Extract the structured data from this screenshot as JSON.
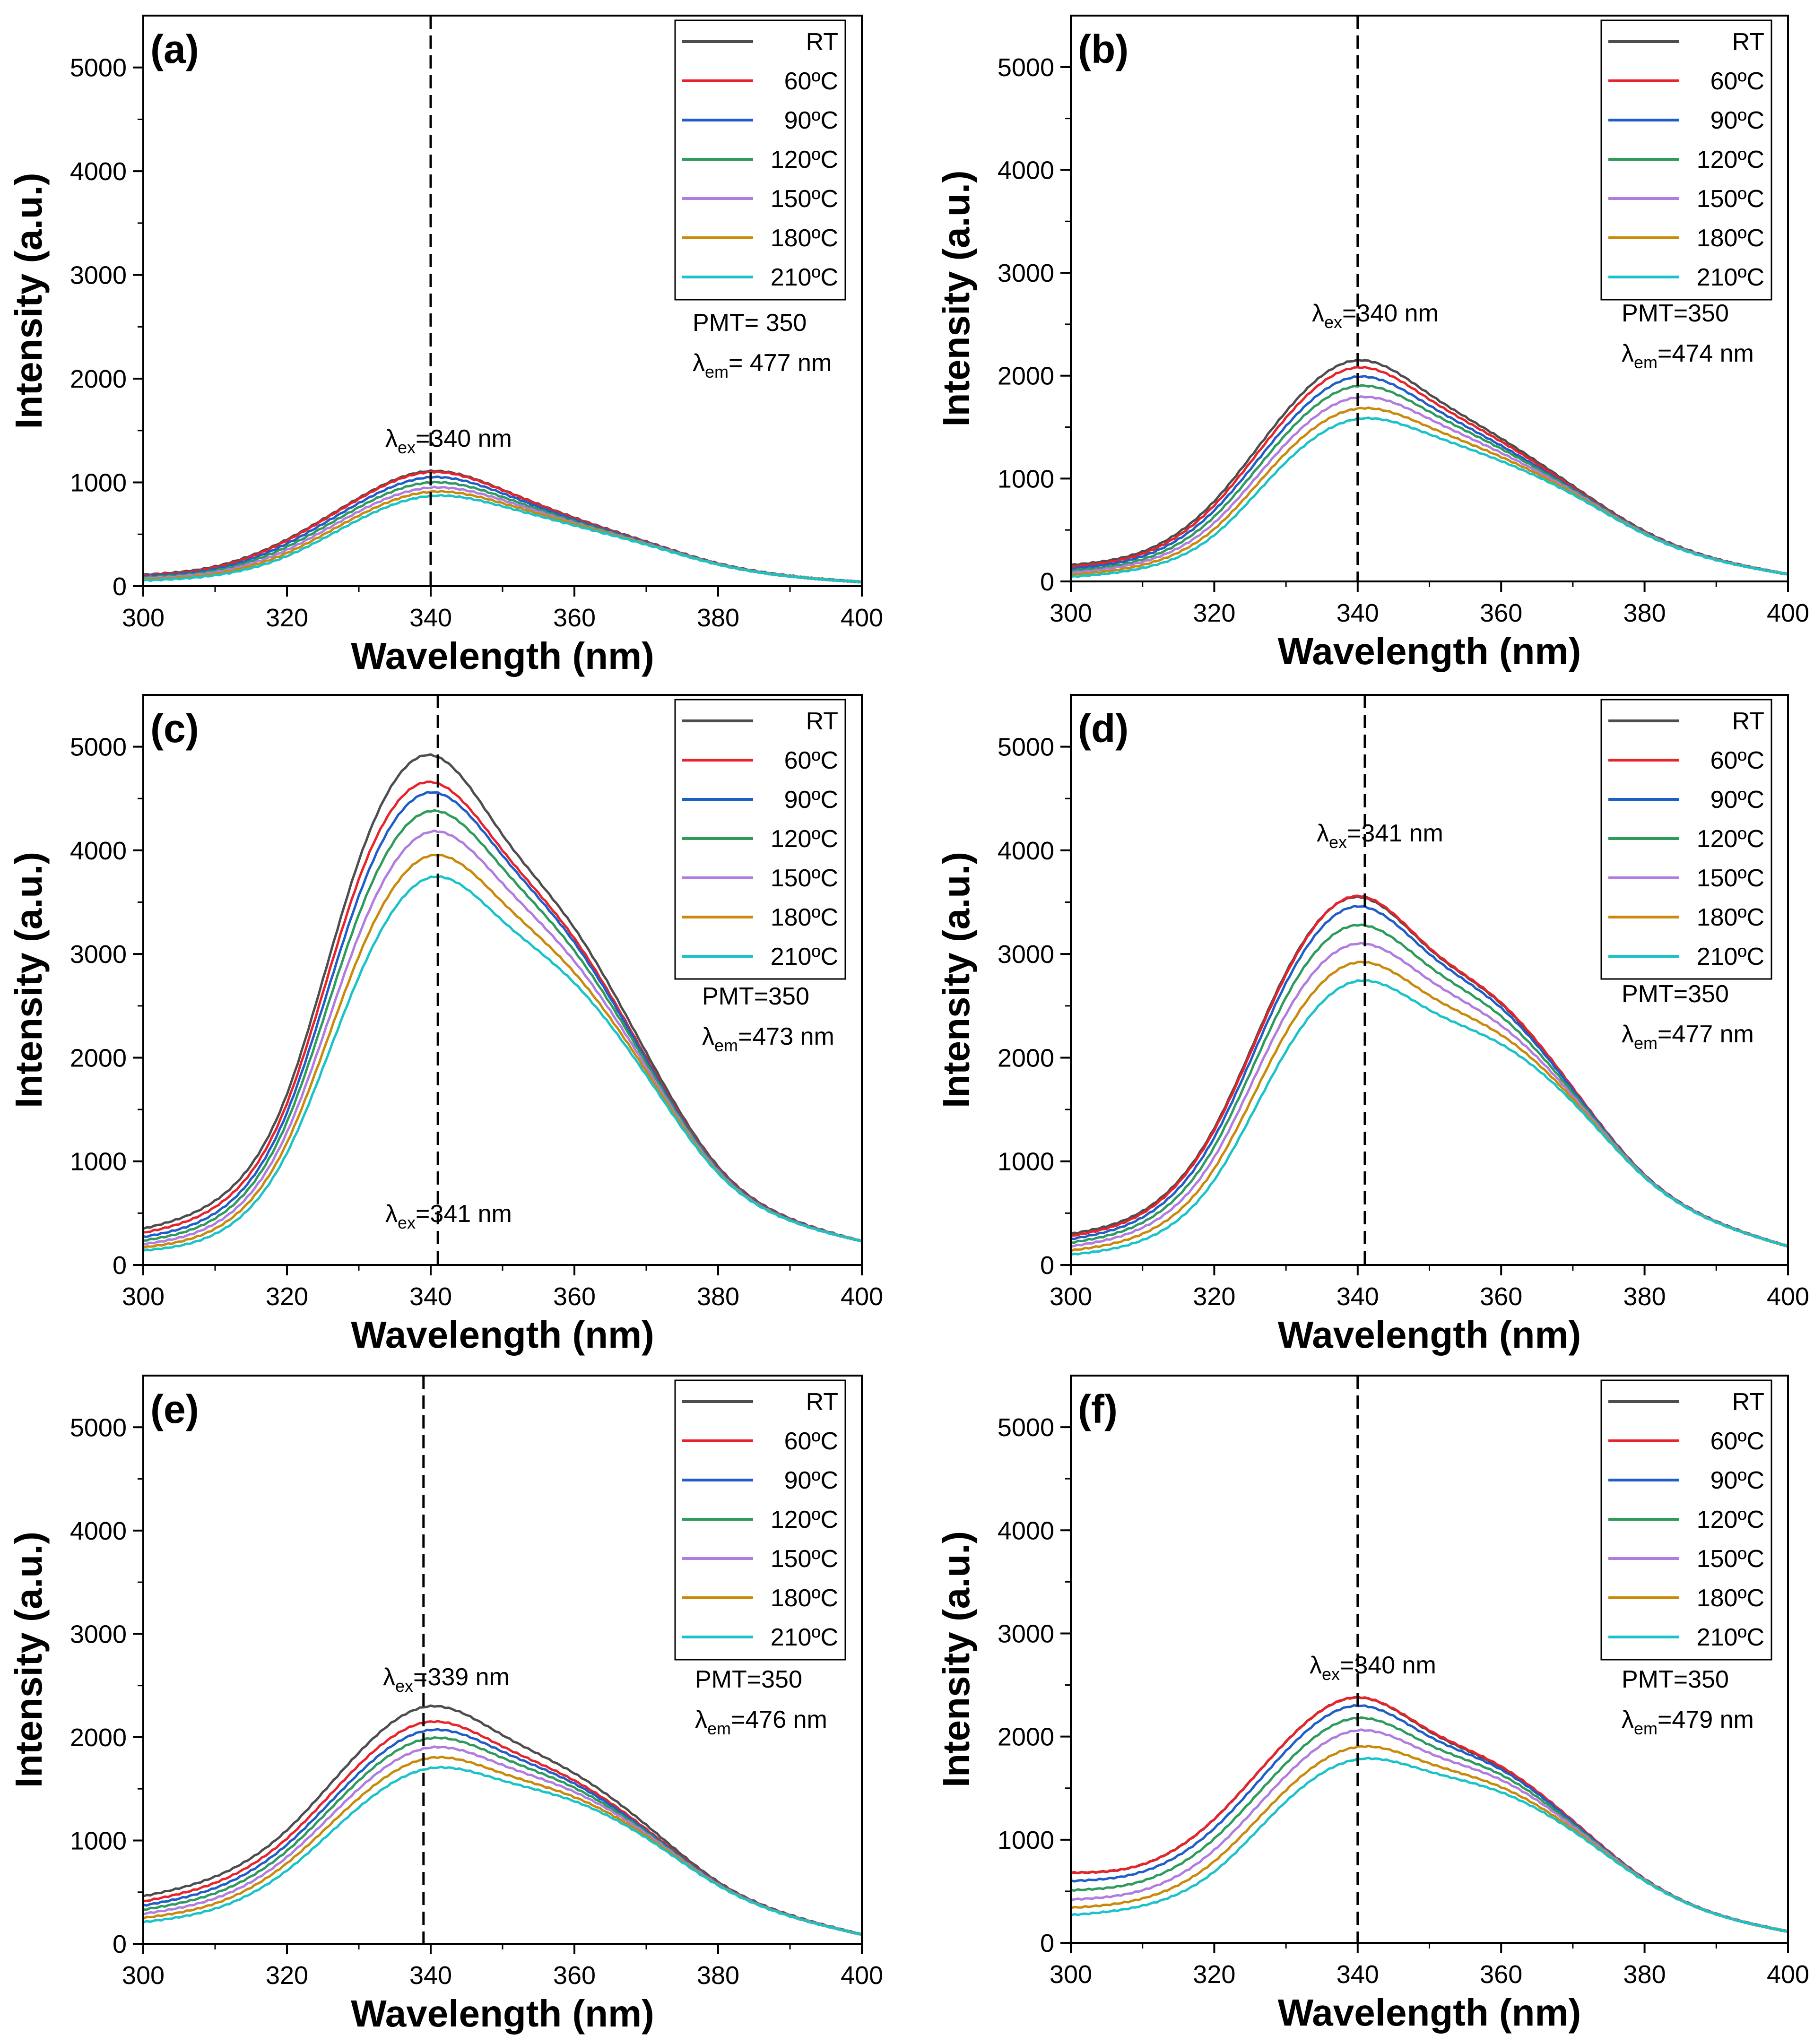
{
  "chart_data": [
    {
      "panel": "(a)",
      "type": "line",
      "xlabel": "Wavelength (nm)",
      "ylabel": "Intensity (a.u.)",
      "xlim": [
        300,
        400
      ],
      "ylim": [
        0,
        5500
      ],
      "xticks": [
        "300",
        "320",
        "340",
        "360",
        "380",
        "400"
      ],
      "yticks": [
        "0",
        "1000",
        "2000",
        "3000",
        "4000",
        "5000"
      ],
      "x": [
        300,
        310,
        320,
        330,
        340,
        350,
        360,
        370,
        380,
        390,
        400
      ],
      "series": [
        {
          "name": "RT",
          "color": "#4d4d4d",
          "values": [
            110,
            190,
            450,
            850,
            1110,
            930,
            660,
            430,
            220,
            100,
            40
          ]
        },
        {
          "name": "60ºC",
          "color": "#e8232a",
          "values": [
            105,
            180,
            440,
            840,
            1100,
            925,
            655,
            425,
            218,
            98,
            40
          ]
        },
        {
          "name": "90ºC",
          "color": "#1f5ec9",
          "values": [
            95,
            165,
            410,
            800,
            1050,
            895,
            640,
            420,
            216,
            97,
            40
          ]
        },
        {
          "name": "120ºC",
          "color": "#2e9a5c",
          "values": [
            85,
            150,
            380,
            760,
            1000,
            860,
            625,
            415,
            214,
            96,
            40
          ]
        },
        {
          "name": "150ºC",
          "color": "#b07ce0",
          "values": [
            75,
            135,
            350,
            720,
            950,
            830,
            610,
            410,
            212,
            95,
            40
          ]
        },
        {
          "name": "180ºC",
          "color": "#c98a0a",
          "values": [
            65,
            120,
            320,
            680,
            910,
            800,
            600,
            405,
            210,
            95,
            40
          ]
        },
        {
          "name": "210ºC",
          "color": "#19c3c8",
          "values": [
            55,
            105,
            290,
            640,
            870,
            770,
            585,
            400,
            208,
            94,
            40
          ]
        }
      ],
      "vline_x": 340,
      "annotations": {
        "pmt": "PMT= 350",
        "lambda_em_value": "= 477 nm",
        "lambda_ex_value": "=340 nm"
      }
    },
    {
      "panel": "(b)",
      "type": "line",
      "xlabel": "Wavelength (nm)",
      "ylabel": "Intensity (a.u.)",
      "xlim": [
        300,
        400
      ],
      "ylim": [
        0,
        5500
      ],
      "xticks": [
        "300",
        "320",
        "340",
        "360",
        "380",
        "400"
      ],
      "yticks": [
        "0",
        "1000",
        "2000",
        "3000",
        "4000",
        "5000"
      ],
      "x": [
        300,
        310,
        320,
        330,
        340,
        350,
        360,
        370,
        380,
        390,
        400
      ],
      "series": [
        {
          "name": "RT",
          "color": "#4d4d4d",
          "values": [
            160,
            290,
            780,
            1650,
            2150,
            1820,
            1390,
            930,
            490,
            220,
            70
          ]
        },
        {
          "name": "60ºC",
          "color": "#e8232a",
          "values": [
            145,
            270,
            740,
            1590,
            2080,
            1770,
            1360,
            915,
            485,
            218,
            70
          ]
        },
        {
          "name": "90ºC",
          "color": "#1f5ec9",
          "values": [
            125,
            245,
            690,
            1510,
            1990,
            1710,
            1320,
            900,
            480,
            216,
            70
          ]
        },
        {
          "name": "120ºC",
          "color": "#2e9a5c",
          "values": [
            105,
            215,
            630,
            1430,
            1900,
            1650,
            1290,
            890,
            475,
            214,
            70
          ]
        },
        {
          "name": "150ºC",
          "color": "#b07ce0",
          "values": [
            85,
            190,
            570,
            1340,
            1790,
            1580,
            1250,
            875,
            470,
            212,
            70
          ]
        },
        {
          "name": "180ºC",
          "color": "#c98a0a",
          "values": [
            65,
            160,
            510,
            1250,
            1680,
            1500,
            1210,
            860,
            465,
            210,
            70
          ]
        },
        {
          "name": "210ºC",
          "color": "#19c3c8",
          "values": [
            45,
            130,
            450,
            1160,
            1580,
            1430,
            1170,
            845,
            460,
            208,
            70
          ]
        }
      ],
      "vline_x": 340,
      "annotations": {
        "pmt": "PMT=350",
        "lambda_em_value": "=474 nm",
        "lambda_ex_value": "=340 nm"
      }
    },
    {
      "panel": "(c)",
      "type": "line",
      "xlabel": "Wavelength (nm)",
      "ylabel": "Intensity (a.u.)",
      "xlim": [
        300,
        400
      ],
      "ylim": [
        0,
        5500
      ],
      "xticks": [
        "300",
        "320",
        "340",
        "360",
        "380",
        "400"
      ],
      "yticks": [
        "0",
        "1000",
        "2000",
        "3000",
        "4000",
        "5000"
      ],
      "x": [
        300,
        310,
        320,
        330,
        340,
        350,
        360,
        370,
        380,
        390,
        400
      ],
      "series": [
        {
          "name": "RT",
          "color": "#4d4d4d",
          "values": [
            350,
            620,
            1650,
            3900,
            4920,
            4150,
            3250,
            2050,
            950,
            450,
            230
          ]
        },
        {
          "name": "60ºC",
          "color": "#e8232a",
          "values": [
            310,
            560,
            1560,
            3720,
            4660,
            4000,
            3150,
            2000,
            935,
            445,
            230
          ]
        },
        {
          "name": "90ºC",
          "color": "#1f5ec9",
          "values": [
            270,
            500,
            1470,
            3560,
            4560,
            3950,
            3110,
            1980,
            925,
            440,
            230
          ]
        },
        {
          "name": "120ºC",
          "color": "#2e9a5c",
          "values": [
            235,
            450,
            1380,
            3380,
            4380,
            3830,
            3030,
            1950,
            915,
            435,
            230
          ]
        },
        {
          "name": "150ºC",
          "color": "#b07ce0",
          "values": [
            200,
            400,
            1280,
            3180,
            4180,
            3680,
            2930,
            1910,
            905,
            432,
            230
          ]
        },
        {
          "name": "180ºC",
          "color": "#c98a0a",
          "values": [
            170,
            350,
            1180,
            2980,
            3950,
            3500,
            2820,
            1870,
            895,
            430,
            230
          ]
        },
        {
          "name": "210ºC",
          "color": "#19c3c8",
          "values": [
            140,
            300,
            1080,
            2780,
            3740,
            3320,
            2720,
            1830,
            885,
            428,
            230
          ]
        }
      ],
      "vline_x": 341,
      "annotations": {
        "pmt": "PMT=350",
        "lambda_em_value": "=473 nm",
        "lambda_ex_value": "=341 nm"
      }
    },
    {
      "panel": "(d)",
      "type": "line",
      "xlabel": "Wavelength (nm)",
      "ylabel": "Intensity (a.u.)",
      "xlim": [
        300,
        400
      ],
      "ylim": [
        0,
        5500
      ],
      "xticks": [
        "300",
        "320",
        "340",
        "360",
        "380",
        "400"
      ],
      "yticks": [
        "0",
        "1000",
        "2000",
        "3000",
        "4000",
        "5000"
      ],
      "x": [
        300,
        310,
        320,
        330,
        340,
        350,
        360,
        370,
        380,
        390,
        400
      ],
      "series": [
        {
          "name": "RT",
          "color": "#4d4d4d",
          "values": [
            300,
            520,
            1320,
            2820,
            3550,
            3050,
            2520,
            1700,
            870,
            420,
            180
          ]
        },
        {
          "name": "60ºC",
          "color": "#e8232a",
          "values": [
            280,
            500,
            1300,
            2800,
            3560,
            3060,
            2530,
            1710,
            872,
            421,
            180
          ]
        },
        {
          "name": "90ºC",
          "color": "#1f5ec9",
          "values": [
            250,
            460,
            1230,
            2720,
            3460,
            3000,
            2480,
            1690,
            868,
            419,
            180
          ]
        },
        {
          "name": "120ºC",
          "color": "#2e9a5c",
          "values": [
            215,
            410,
            1140,
            2580,
            3280,
            2880,
            2400,
            1660,
            862,
            417,
            180
          ]
        },
        {
          "name": "150ºC",
          "color": "#b07ce0",
          "values": [
            180,
            360,
            1040,
            2420,
            3100,
            2750,
            2310,
            1630,
            856,
            415,
            180
          ]
        },
        {
          "name": "180ºC",
          "color": "#c98a0a",
          "values": [
            140,
            300,
            930,
            2240,
            2920,
            2600,
            2220,
            1600,
            850,
            413,
            180
          ]
        },
        {
          "name": "210ºC",
          "color": "#19c3c8",
          "values": [
            100,
            240,
            820,
            2060,
            2740,
            2460,
            2130,
            1570,
            845,
            411,
            180
          ]
        }
      ],
      "vline_x": 341,
      "annotations": {
        "pmt": "PMT=350",
        "lambda_em_value": "=477 nm",
        "lambda_ex_value": "=341 nm"
      }
    },
    {
      "panel": "(e)",
      "type": "line",
      "xlabel": "Wavelength (nm)",
      "ylabel": "Intensity (a.u.)",
      "xlim": [
        300,
        400
      ],
      "ylim": [
        0,
        5500
      ],
      "xticks": [
        "300",
        "320",
        "340",
        "360",
        "380",
        "400"
      ],
      "yticks": [
        "0",
        "1000",
        "2000",
        "3000",
        "4000",
        "5000"
      ],
      "x": [
        300,
        310,
        320,
        330,
        340,
        350,
        360,
        370,
        380,
        390,
        400
      ],
      "series": [
        {
          "name": "RT",
          "color": "#4d4d4d",
          "values": [
            460,
            650,
            1100,
            1850,
            2300,
            2020,
            1650,
            1150,
            600,
            280,
            90
          ]
        },
        {
          "name": "60ºC",
          "color": "#e8232a",
          "values": [
            410,
            590,
            1020,
            1730,
            2150,
            1910,
            1580,
            1110,
            590,
            276,
            90
          ]
        },
        {
          "name": "90ºC",
          "color": "#1f5ec9",
          "values": [
            370,
            540,
            960,
            1650,
            2070,
            1860,
            1550,
            1095,
            585,
            274,
            90
          ]
        },
        {
          "name": "120ºC",
          "color": "#2e9a5c",
          "values": [
            330,
            490,
            900,
            1580,
            1990,
            1800,
            1510,
            1080,
            580,
            272,
            90
          ]
        },
        {
          "name": "150ºC",
          "color": "#b07ce0",
          "values": [
            290,
            440,
            840,
            1500,
            1900,
            1730,
            1470,
            1065,
            575,
            270,
            90
          ]
        },
        {
          "name": "180ºC",
          "color": "#c98a0a",
          "values": [
            250,
            390,
            780,
            1410,
            1800,
            1650,
            1420,
            1045,
            570,
            268,
            90
          ]
        },
        {
          "name": "210ºC",
          "color": "#19c3c8",
          "values": [
            210,
            340,
            710,
            1320,
            1700,
            1580,
            1380,
            1025,
            565,
            266,
            90
          ]
        }
      ],
      "vline_x": 339,
      "annotations": {
        "pmt": "PMT=350",
        "lambda_em_value": "=476 nm",
        "lambda_ex_value": "=339 nm"
      }
    },
    {
      "panel": "(f)",
      "type": "line",
      "xlabel": "Wavelength (nm)",
      "ylabel": "Intensity (a.u.)",
      "xlim": [
        300,
        400
      ],
      "ylim": [
        0,
        5500
      ],
      "xticks": [
        "300",
        "320",
        "340",
        "360",
        "380",
        "400"
      ],
      "yticks": [
        "0",
        "1000",
        "2000",
        "3000",
        "4000",
        "5000"
      ],
      "x": [
        300,
        310,
        320,
        330,
        340,
        350,
        360,
        370,
        380,
        390,
        400
      ],
      "series": [
        {
          "name": "RT",
          "color": "#4d4d4d",
          "values": [
            680,
            760,
            1200,
            1950,
            2380,
            2050,
            1700,
            1180,
            620,
            280,
            110
          ]
        },
        {
          "name": "60ºC",
          "color": "#e8232a",
          "values": [
            680,
            760,
            1200,
            1950,
            2380,
            2060,
            1710,
            1185,
            622,
            281,
            110
          ]
        },
        {
          "name": "90ºC",
          "color": "#1f5ec9",
          "values": [
            600,
            690,
            1110,
            1860,
            2300,
            2000,
            1680,
            1170,
            618,
            280,
            110
          ]
        },
        {
          "name": "120ºC",
          "color": "#2e9a5c",
          "values": [
            510,
            600,
            1010,
            1740,
            2180,
            1920,
            1630,
            1150,
            614,
            279,
            110
          ]
        },
        {
          "name": "150ºC",
          "color": "#b07ce0",
          "values": [
            420,
            510,
            900,
            1620,
            2060,
            1840,
            1580,
            1130,
            610,
            278,
            110
          ]
        },
        {
          "name": "180ºC",
          "color": "#c98a0a",
          "values": [
            340,
            430,
            790,
            1480,
            1900,
            1740,
            1510,
            1105,
            605,
            277,
            110
          ]
        },
        {
          "name": "210ºC",
          "color": "#19c3c8",
          "values": [
            270,
            360,
            690,
            1370,
            1780,
            1660,
            1460,
            1085,
            600,
            276,
            110
          ]
        }
      ],
      "vline_x": 340,
      "annotations": {
        "pmt": "PMT=350",
        "lambda_em_value": "=479 nm",
        "lambda_ex_value": "=340 nm"
      }
    }
  ],
  "symbols": {
    "lambda": "λ",
    "sub_ex": "ex",
    "sub_em": "em"
  }
}
